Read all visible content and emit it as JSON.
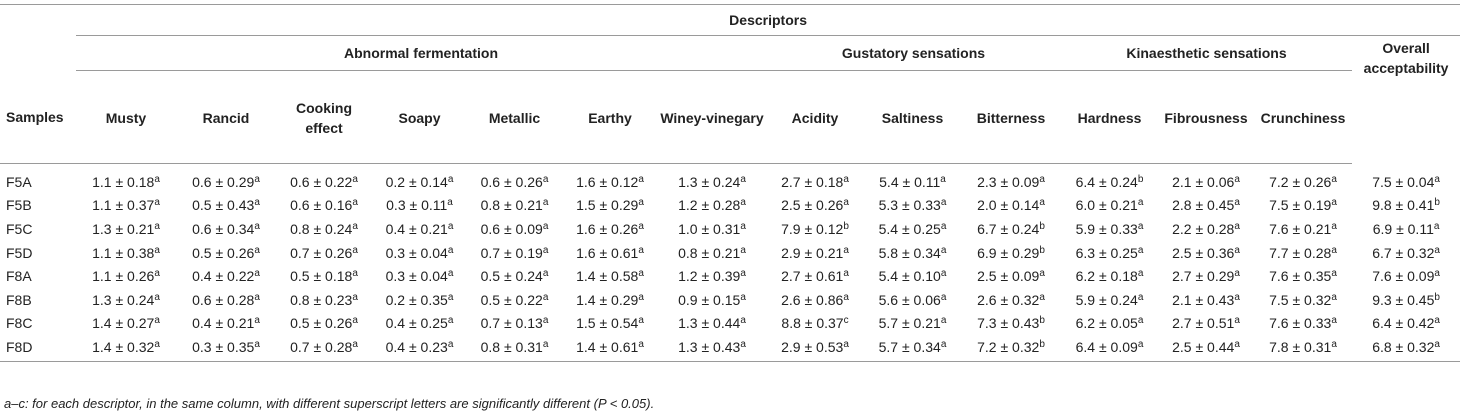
{
  "table": {
    "top_header": "Descriptors",
    "samples_label": "Samples",
    "groups": [
      {
        "label": "Abnormal fermentation"
      },
      {
        "label": "Gustatory sensations"
      },
      {
        "label": "Kinaesthetic sensations"
      },
      {
        "label": "Overall acceptability"
      }
    ],
    "columns": [
      "Musty",
      "Rancid",
      "Cooking effect",
      "Soapy",
      "Metallic",
      "Earthy",
      "Winey-vinegary",
      "Acidity",
      "Saltiness",
      "Bitterness",
      "Hardness",
      "Fibrousness",
      "Crunchiness"
    ],
    "rows": [
      {
        "sample": "F5A",
        "cells": [
          [
            "1.1 ± 0.18",
            "a"
          ],
          [
            "0.6 ± 0.29",
            "a"
          ],
          [
            "0.6 ± 0.22",
            "a"
          ],
          [
            "0.2 ± 0.14",
            "a"
          ],
          [
            "0.6 ± 0.26",
            "a"
          ],
          [
            "1.6 ± 0.12",
            "a"
          ],
          [
            "1.3 ± 0.24",
            "a"
          ],
          [
            "2.7 ± 0.18",
            "a"
          ],
          [
            "5.4 ± 0.11",
            "a"
          ],
          [
            "2.3 ± 0.09",
            "a"
          ],
          [
            "6.4 ± 0.24",
            "b"
          ],
          [
            "2.1 ± 0.06",
            "a"
          ],
          [
            "7.2 ± 0.26",
            "a"
          ],
          [
            "7.5 ± 0.04",
            "a"
          ]
        ]
      },
      {
        "sample": "F5B",
        "cells": [
          [
            "1.1 ± 0.37",
            "a"
          ],
          [
            "0.5 ± 0.43",
            "a"
          ],
          [
            "0.6 ± 0.16",
            "a"
          ],
          [
            "0.3 ± 0.11",
            "a"
          ],
          [
            "0.8 ± 0.21",
            "a"
          ],
          [
            "1.5 ± 0.29",
            "a"
          ],
          [
            "1.2 ± 0.28",
            "a"
          ],
          [
            "2.5 ± 0.26",
            "a"
          ],
          [
            "5.3 ± 0.33",
            "a"
          ],
          [
            "2.0 ± 0.14",
            "a"
          ],
          [
            "6.0 ± 0.21",
            "a"
          ],
          [
            "2.8 ± 0.45",
            "a"
          ],
          [
            "7.5 ± 0.19",
            "a"
          ],
          [
            "9.8 ± 0.41",
            "b"
          ]
        ]
      },
      {
        "sample": "F5C",
        "cells": [
          [
            "1.3 ± 0.21",
            "a"
          ],
          [
            "0.6 ± 0.34",
            "a"
          ],
          [
            "0.8 ± 0.24",
            "a"
          ],
          [
            "0.4 ± 0.21",
            "a"
          ],
          [
            "0.6 ± 0.09",
            "a"
          ],
          [
            "1.6 ± 0.26",
            "a"
          ],
          [
            "1.0 ± 0.31",
            "a"
          ],
          [
            "7.9 ± 0.12",
            "b"
          ],
          [
            "5.4 ± 0.25",
            "a"
          ],
          [
            "6.7 ± 0.24",
            "b"
          ],
          [
            "5.9 ± 0.33",
            "a"
          ],
          [
            "2.2 ± 0.28",
            "a"
          ],
          [
            "7.6 ± 0.21",
            "a"
          ],
          [
            "6.9 ± 0.11",
            "a"
          ]
        ]
      },
      {
        "sample": "F5D",
        "cells": [
          [
            "1.1 ± 0.38",
            "a"
          ],
          [
            "0.5 ± 0.26",
            "a"
          ],
          [
            "0.7 ± 0.26",
            "a"
          ],
          [
            "0.3 ± 0.04",
            "a"
          ],
          [
            "0.7 ± 0.19",
            "a"
          ],
          [
            "1.6 ± 0.61",
            "a"
          ],
          [
            "0.8 ± 0.21",
            "a"
          ],
          [
            "2.9 ± 0.21",
            "a"
          ],
          [
            "5.8 ± 0.34",
            "a"
          ],
          [
            "6.9 ± 0.29",
            "b"
          ],
          [
            "6.3 ± 0.25",
            "a"
          ],
          [
            "2.5 ± 0.36",
            "a"
          ],
          [
            "7.7 ± 0.28",
            "a"
          ],
          [
            "6.7 ± 0.32",
            "a"
          ]
        ]
      },
      {
        "sample": "F8A",
        "cells": [
          [
            "1.1 ± 0.26",
            "a"
          ],
          [
            "0.4 ± 0.22",
            "a"
          ],
          [
            "0.5 ± 0.18",
            "a"
          ],
          [
            "0.3 ± 0.04",
            "a"
          ],
          [
            "0.5 ± 0.24",
            "a"
          ],
          [
            "1.4 ± 0.58",
            "a"
          ],
          [
            "1.2 ± 0.39",
            "a"
          ],
          [
            "2.7 ± 0.61",
            "a"
          ],
          [
            "5.4 ± 0.10",
            "a"
          ],
          [
            "2.5 ± 0.09",
            "a"
          ],
          [
            "6.2 ± 0.18",
            "a"
          ],
          [
            "2.7 ± 0.29",
            "a"
          ],
          [
            "7.6 ± 0.35",
            "a"
          ],
          [
            "7.6 ± 0.09",
            "a"
          ]
        ]
      },
      {
        "sample": "F8B",
        "cells": [
          [
            "1.3 ± 0.24",
            "a"
          ],
          [
            "0.6 ± 0.28",
            "a"
          ],
          [
            "0.8 ± 0.23",
            "a"
          ],
          [
            "0.2 ± 0.35",
            "a"
          ],
          [
            "0.5 ± 0.22",
            "a"
          ],
          [
            "1.4 ± 0.29",
            "a"
          ],
          [
            "0.9 ± 0.15",
            "a"
          ],
          [
            "2.6 ± 0.86",
            "a"
          ],
          [
            "5.6 ± 0.06",
            "a"
          ],
          [
            "2.6 ± 0.32",
            "a"
          ],
          [
            "5.9 ± 0.24",
            "a"
          ],
          [
            "2.1 ± 0.43",
            "a"
          ],
          [
            "7.5 ± 0.32",
            "a"
          ],
          [
            "9.3 ± 0.45",
            "b"
          ]
        ]
      },
      {
        "sample": "F8C",
        "cells": [
          [
            "1.4 ± 0.27",
            "a"
          ],
          [
            "0.4 ± 0.21",
            "a"
          ],
          [
            "0.5 ± 0.26",
            "a"
          ],
          [
            "0.4 ± 0.25",
            "a"
          ],
          [
            "0.7 ± 0.13",
            "a"
          ],
          [
            "1.5 ± 0.54",
            "a"
          ],
          [
            "1.3 ± 0.44",
            "a"
          ],
          [
            "8.8 ± 0.37",
            "c"
          ],
          [
            "5.7 ± 0.21",
            "a"
          ],
          [
            "7.3 ± 0.43",
            "b"
          ],
          [
            "6.2 ± 0.05",
            "a"
          ],
          [
            "2.7 ± 0.51",
            "a"
          ],
          [
            "7.6 ± 0.33",
            "a"
          ],
          [
            "6.4 ± 0.42",
            "a"
          ]
        ]
      },
      {
        "sample": "F8D",
        "cells": [
          [
            "1.4 ± 0.32",
            "a"
          ],
          [
            "0.3 ± 0.35",
            "a"
          ],
          [
            "0.7 ± 0.28",
            "a"
          ],
          [
            "0.4 ± 0.23",
            "a"
          ],
          [
            "0.8 ± 0.31",
            "a"
          ],
          [
            "1.4 ± 0.61",
            "a"
          ],
          [
            "1.3 ± 0.43",
            "a"
          ],
          [
            "2.9 ± 0.53",
            "a"
          ],
          [
            "5.7 ± 0.34",
            "a"
          ],
          [
            "7.2 ± 0.32",
            "b"
          ],
          [
            "6.4 ± 0.09",
            "a"
          ],
          [
            "2.5 ± 0.44",
            "a"
          ],
          [
            "7.8 ± 0.31",
            "a"
          ],
          [
            "6.8 ± 0.32",
            "a"
          ]
        ]
      }
    ],
    "footnote": "a–c: for each descriptor, in the same column, with different superscript letters are significantly different (P < 0.05)."
  }
}
